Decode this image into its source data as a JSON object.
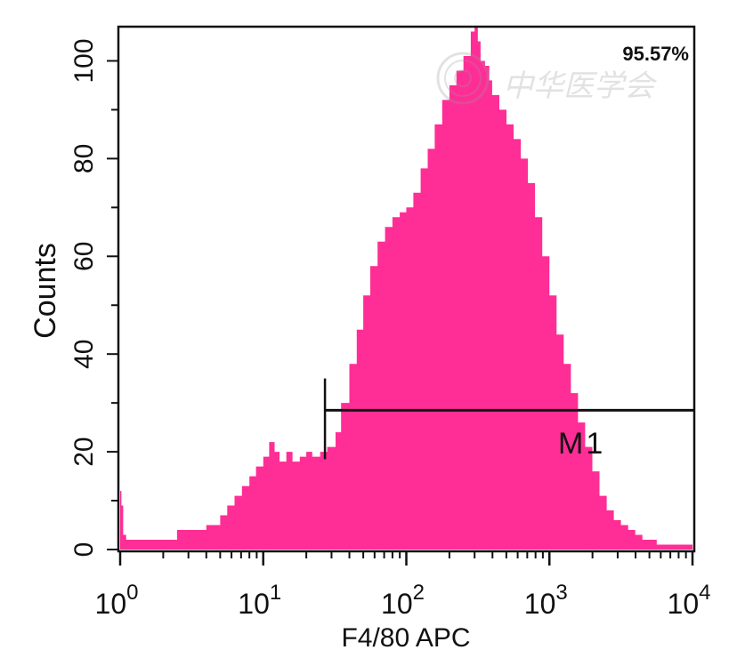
{
  "chart_data": {
    "type": "histogram",
    "xlabel": "F4/80 APC",
    "ylabel": "Counts",
    "x_scale": "log",
    "xlim": [
      1,
      10000
    ],
    "ylim": [
      0,
      107
    ],
    "x_ticks": [
      {
        "value": 1,
        "base": "10",
        "exp": "0"
      },
      {
        "value": 10,
        "base": "10",
        "exp": "1"
      },
      {
        "value": 100,
        "base": "10",
        "exp": "2"
      },
      {
        "value": 1000,
        "base": "10",
        "exp": "3"
      },
      {
        "value": 10000,
        "base": "10",
        "exp": "4"
      }
    ],
    "y_ticks": [
      0,
      20,
      40,
      60,
      80,
      100
    ],
    "fill_color": "#ff2d96",
    "series": [
      {
        "x": [
          1.0,
          1.02,
          1.05,
          1.1,
          1.2,
          1.35,
          1.6,
          2.0,
          2.5,
          3.2,
          4.0,
          5.0,
          5.6,
          6.3,
          7.1,
          8.0,
          8.9,
          10.0,
          11.0,
          12.0,
          13.0,
          14.5,
          16.0,
          18.0,
          20.0,
          22.0,
          25.0,
          28.0,
          32.0,
          35.0,
          40.0,
          45.0,
          50.0,
          56.0,
          63.0,
          71.0,
          80.0,
          90.0,
          100.0,
          112.0,
          126.0,
          141.0,
          158.0,
          178.0,
          200.0,
          224.0,
          251.0,
          282.0,
          300.0,
          316.0,
          330.0,
          355.0,
          380.0,
          398.0,
          447.0,
          501.0,
          562.0,
          631.0,
          708.0,
          794.0,
          891.0,
          1000.0,
          1122.0,
          1259.0,
          1413.0,
          1585.0,
          1778.0,
          1995.0,
          2239.0,
          2512.0,
          2818.0,
          3162.0,
          3548.0,
          3981.0,
          4467.0,
          5012.0,
          5623.0,
          6310.0,
          7079.0,
          7943.0,
          8913.0,
          10000.0
        ],
        "y": [
          12,
          9,
          3,
          2,
          2,
          2,
          2,
          2,
          4,
          4,
          5,
          7,
          9,
          11,
          13,
          15,
          17,
          19,
          22,
          20,
          18,
          20,
          18,
          19,
          20,
          19,
          20,
          21,
          24,
          30,
          38,
          45,
          52,
          58,
          63,
          66,
          68,
          69,
          70,
          73,
          78,
          82,
          87,
          92,
          95,
          98,
          101,
          106,
          107,
          104,
          100,
          99,
          96,
          93,
          90,
          87,
          84,
          80,
          75,
          68,
          60,
          52,
          44,
          38,
          32,
          26,
          21,
          16,
          11,
          8,
          6,
          5,
          4,
          3,
          2,
          2,
          1,
          1,
          1,
          1,
          1,
          0
        ]
      }
    ],
    "marker": {
      "label": "M1",
      "from": 27,
      "to": 10000,
      "level": 28.5,
      "start_tick_top": 35,
      "percent": "95.57%"
    },
    "watermark": "中华医学会"
  }
}
